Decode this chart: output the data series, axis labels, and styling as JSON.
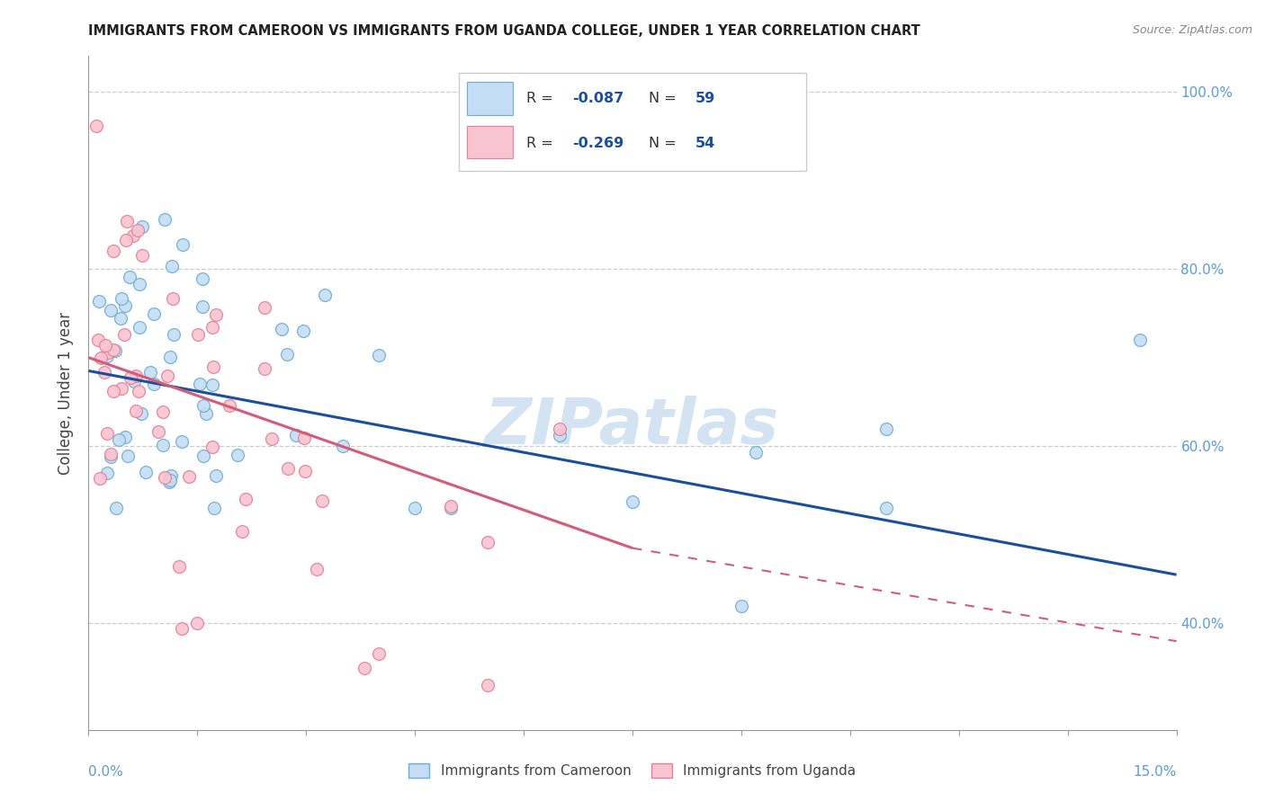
{
  "title": "IMMIGRANTS FROM CAMEROON VS IMMIGRANTS FROM UGANDA COLLEGE, UNDER 1 YEAR CORRELATION CHART",
  "source": "Source: ZipAtlas.com",
  "ylabel": "College, Under 1 year",
  "xlim": [
    0.0,
    15.0
  ],
  "ylim": [
    28.0,
    104.0
  ],
  "ytick_values": [
    40.0,
    60.0,
    80.0,
    100.0
  ],
  "series1_label": "Immigrants from Cameroon",
  "series2_label": "Immigrants from Uganda",
  "series1_fill": "#c5ddf4",
  "series2_fill": "#f9c4d2",
  "series1_edge": "#6baed6",
  "series2_edge": "#e87d94",
  "trend1_color": "#1a4fa0",
  "trend2_color": "#d45c78",
  "trend1_y0": 68.5,
  "trend1_y1": 45.5,
  "trend2_y0": 70.0,
  "trend2_y1_solid": 48.5,
  "trend2_x_solid_end": 7.5,
  "trend2_y1_dash": 38.0,
  "trend2_x_dash_end": 15.0,
  "legend_R1": "-0.087",
  "legend_N1": "59",
  "legend_R2": "-0.269",
  "legend_N2": "54",
  "legend_text_color": "#1a4fa0",
  "legend_value_color": "#1a4fa0",
  "watermark": "ZIPatlas",
  "background_color": "#ffffff",
  "grid_color": "#cccccc",
  "axis_color": "#999999",
  "tick_color": "#5b9bd5"
}
